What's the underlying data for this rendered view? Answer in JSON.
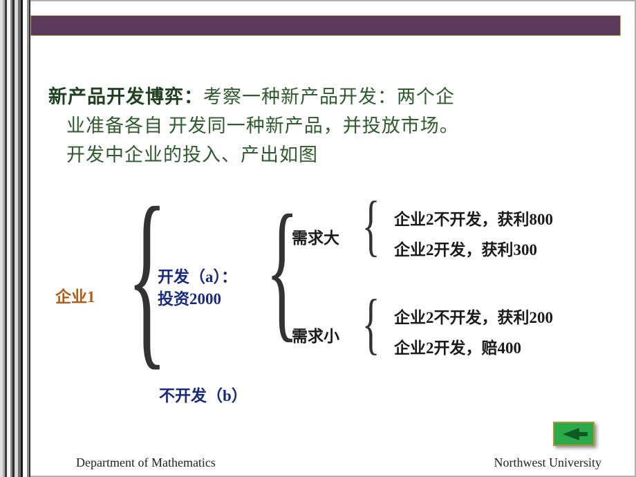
{
  "colors": {
    "purple_bar": "#5b3a5b",
    "title_strong": "#204020",
    "body_green": "#2e5a2e",
    "firm_color": "#b05c18",
    "action_blue": "#1a2a7a",
    "demand_color": "#1a1a1a",
    "outcome_color": "#1a1a1a",
    "nav_fill": "#1a8a3a",
    "nav_border": "#a89838"
  },
  "stripes": [
    {
      "w": 4,
      "c": "#e0e0e0"
    },
    {
      "w": 3,
      "c": "#b0b0b0"
    },
    {
      "w": 3,
      "c": "#3a3a3a"
    },
    {
      "w": 5,
      "c": "#f5f5f5"
    },
    {
      "w": 3,
      "c": "#888888"
    },
    {
      "w": 3,
      "c": "#2a2a2a"
    },
    {
      "w": 5,
      "c": "#d8d8d8"
    },
    {
      "w": 4,
      "c": "#707070"
    },
    {
      "w": 3,
      "c": "#1a1a1a"
    },
    {
      "w": 6,
      "c": "#ffffff"
    },
    {
      "w": 3,
      "c": "#909090"
    },
    {
      "w": 2,
      "c": "#303030"
    }
  ],
  "title": {
    "strong": "新产品开发博弈：",
    "rest_l1": "考察一种新产品开发：两个企",
    "l2": "业准备各自 开发同一种新产品，并投放市场。",
    "l3": "开发中企业的投入、产出如图"
  },
  "tree": {
    "root": "企业1",
    "dev_a_l1": "开发（a）：",
    "dev_a_l2": "投资2000",
    "no_dev_b": "不开发（b）",
    "demand_high": "需求大",
    "demand_low": "需求小",
    "high_nodev": "企业2不开发，获利800",
    "high_dev": "企业2开发，获利300",
    "low_nodev": "企业2不开发，获利200",
    "low_dev": "企业2开发，赔400"
  },
  "footer": {
    "left": "Department of Mathematics",
    "right": "Northwest University"
  }
}
